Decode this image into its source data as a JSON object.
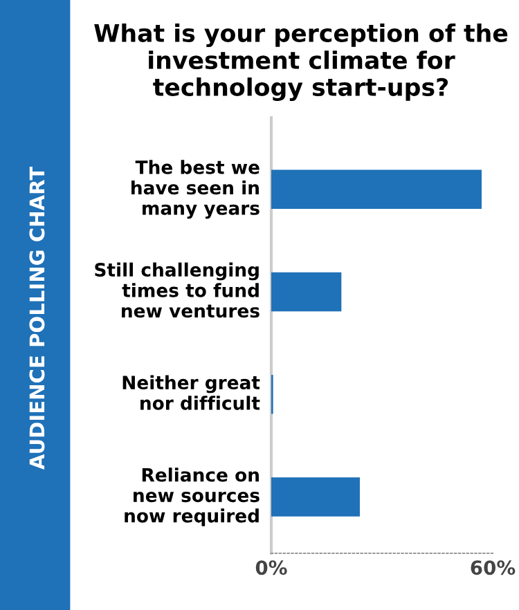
{
  "chart_data": {
    "type": "bar",
    "orientation": "horizontal",
    "title": "What is your perception of the investment climate for technology start-ups?",
    "annotations": [
      "AUDIENCE POLLING CHART"
    ],
    "categories": [
      "The best we have seen in many years",
      "Still challenging times to fund new ventures",
      "Neither great nor difficult",
      "Reliance on new sources now required"
    ],
    "values": [
      57,
      19,
      0.5,
      24
    ],
    "color": "#1f71b8",
    "xlim": [
      0,
      60
    ],
    "xticks": [
      {
        "value": 0,
        "label": "0%"
      },
      {
        "value": 60,
        "label": "60%"
      }
    ],
    "grid": false
  }
}
